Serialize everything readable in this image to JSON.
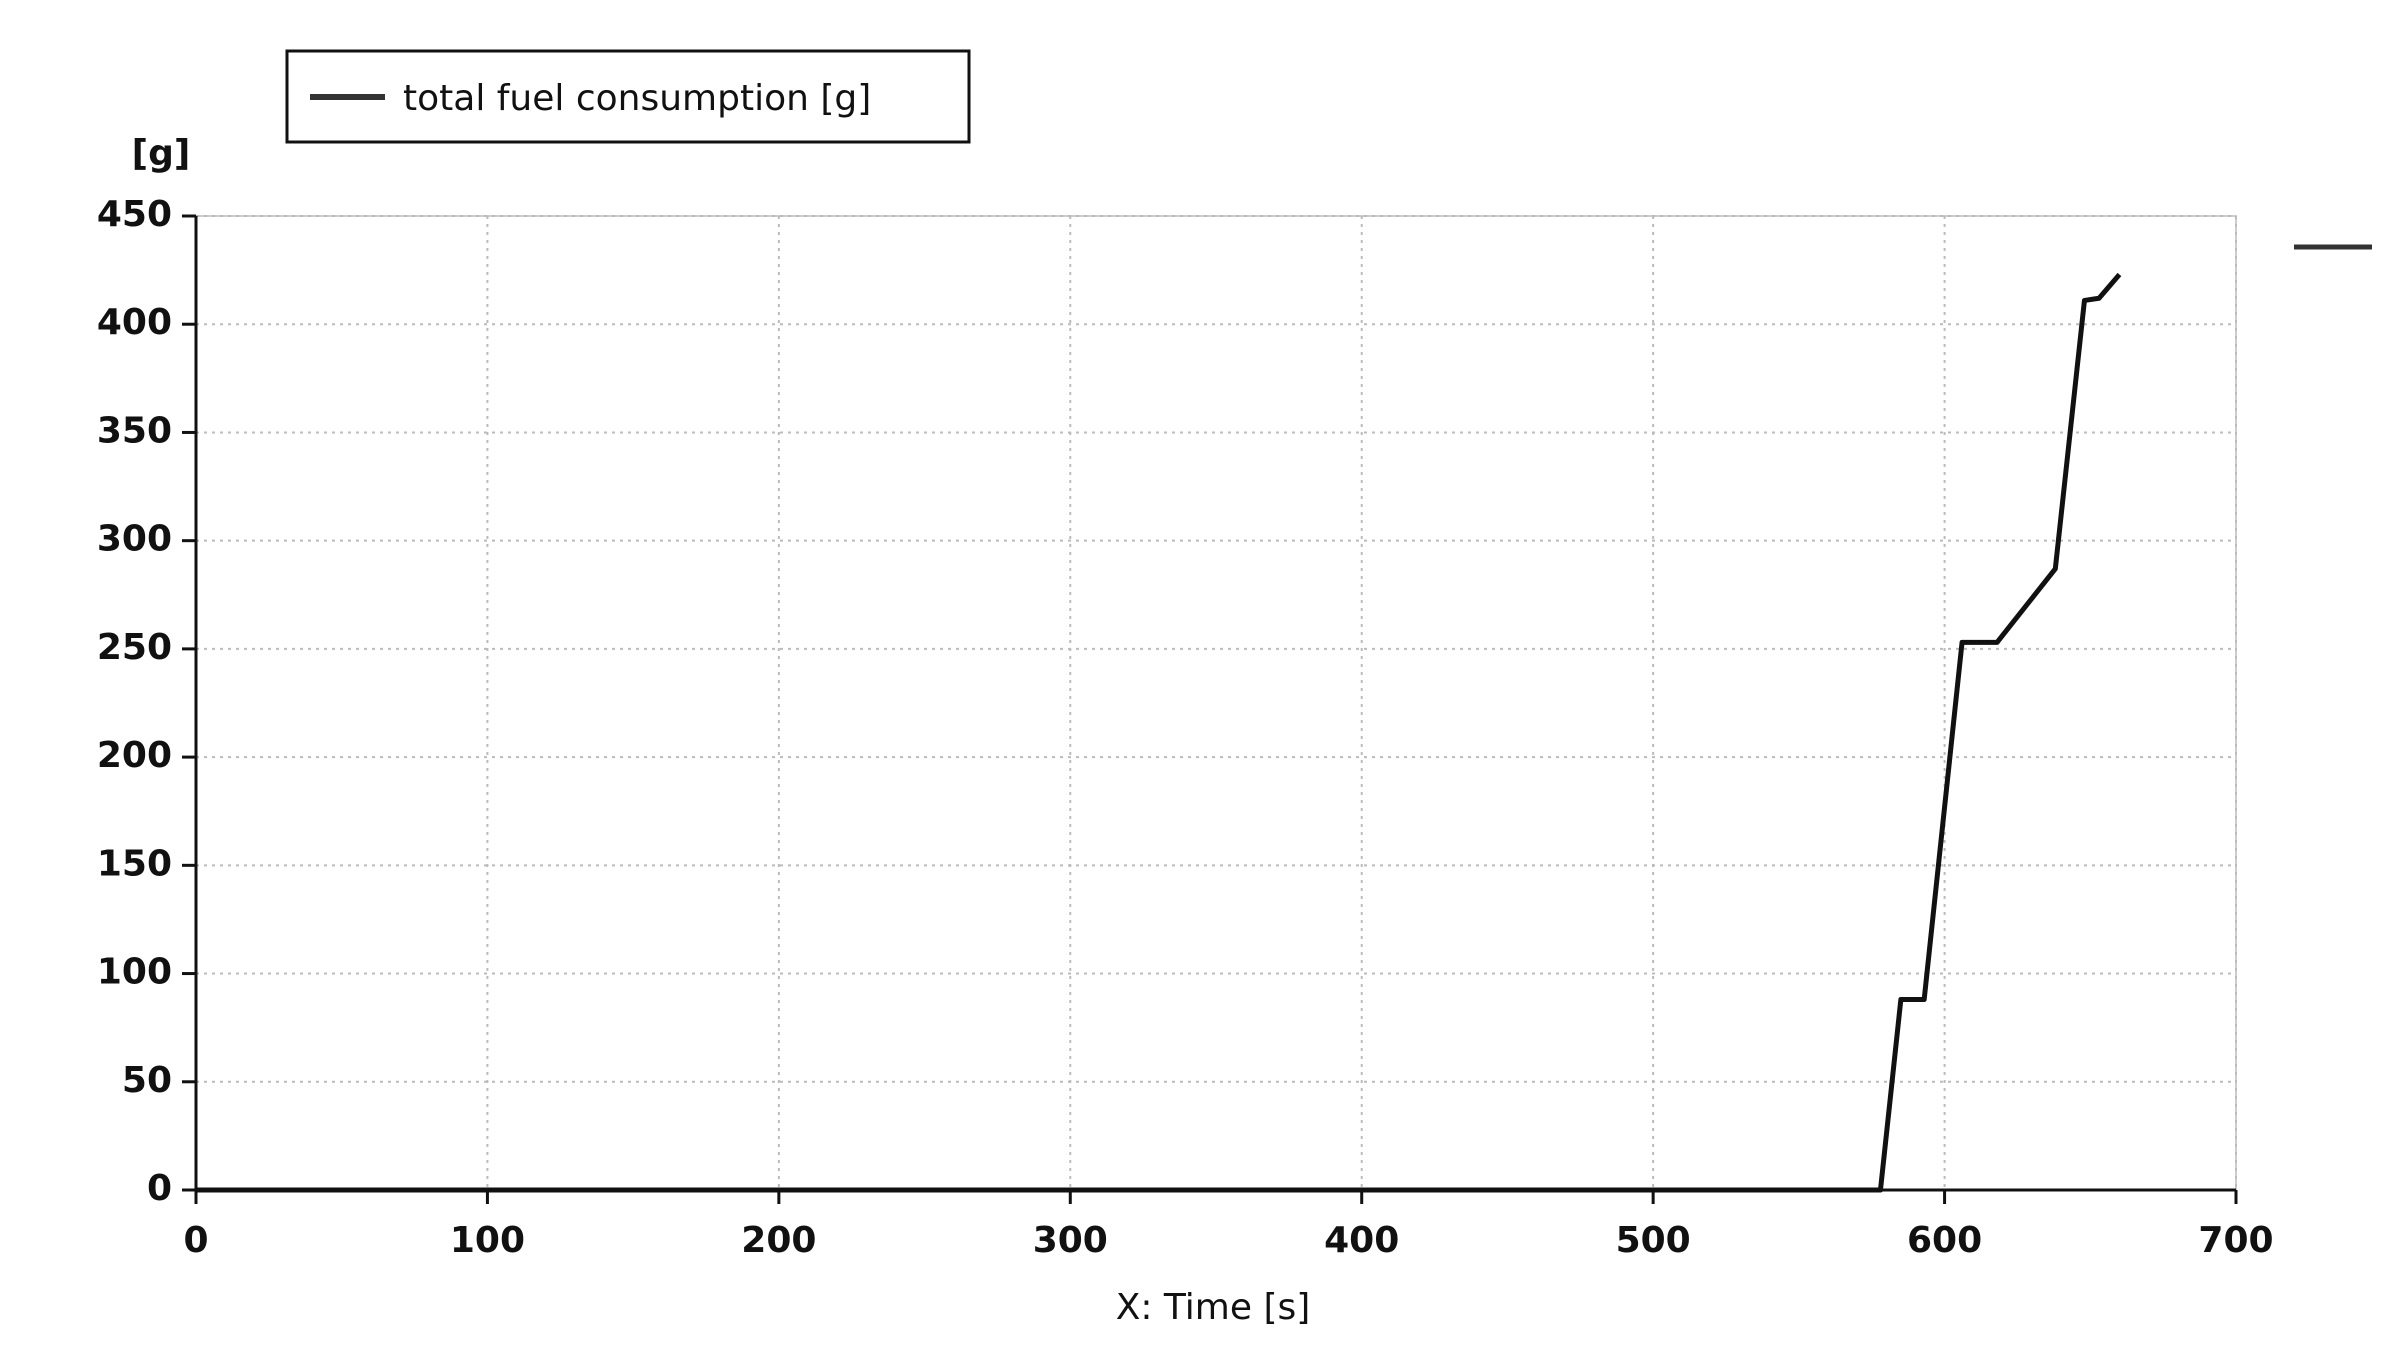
{
  "chart_data": {
    "type": "line",
    "y_unit": "[g]",
    "xlabel": "X: Time [s]",
    "x": [
      0,
      578,
      585,
      593,
      606,
      618,
      638,
      648,
      653,
      660
    ],
    "series": [
      {
        "name": "total fuel consumption [g]",
        "color": "#111111",
        "values": [
          0,
          0,
          88,
          88,
          253,
          253,
          287,
          411,
          412,
          423
        ]
      }
    ],
    "xlim": [
      0,
      700
    ],
    "xticks": [
      0,
      100,
      200,
      300,
      400,
      500,
      600,
      700
    ],
    "ylim": [
      0,
      450
    ],
    "yticks": [
      0,
      50,
      100,
      150,
      200,
      250,
      300,
      350,
      400,
      450
    ],
    "grid": true
  }
}
